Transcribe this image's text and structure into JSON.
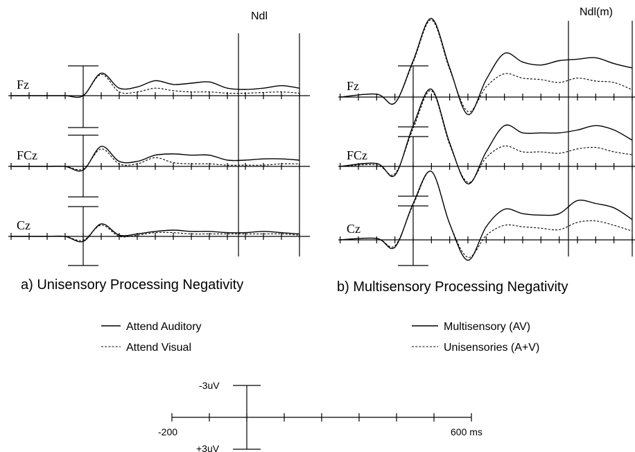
{
  "panels": [
    {
      "id": "a",
      "caption": "a) Unisensory Processing Negativity",
      "marker_label": "Ndl",
      "legend": [
        {
          "style": "solid",
          "label": "Attend Auditory"
        },
        {
          "style": "dashed",
          "label": "Attend Visual"
        }
      ]
    },
    {
      "id": "b",
      "caption": "b) Multisensory Processing Negativity",
      "marker_label": "Ndl(m)",
      "legend": [
        {
          "style": "solid",
          "label": "Multisensory (AV)"
        },
        {
          "style": "dashed",
          "label": "Unisensories (A+V)"
        }
      ]
    }
  ],
  "scale_bar": {
    "neg_label": "-3uV",
    "pos_label": "+3uV",
    "start_label": "-200",
    "end_label": "600 ms"
  },
  "chart_data": [
    {
      "type": "line",
      "panel": "a",
      "x_unit": "ms",
      "y_unit": "uV",
      "xlim": [
        -200,
        600
      ],
      "x": [
        -200,
        -100,
        -50,
        0,
        50,
        100,
        150,
        200,
        250,
        300,
        350,
        400,
        450,
        500,
        550,
        600
      ],
      "electrodes": [
        {
          "label": "Fz",
          "series": [
            {
              "style": "solid",
              "values": [
                0,
                0,
                0,
                0,
                1.8,
                0.6,
                0.7,
                1.2,
                0.9,
                1.0,
                1.1,
                0.6,
                0.5,
                0.6,
                0.8,
                0.6
              ]
            },
            {
              "style": "dashed",
              "values": [
                0,
                0,
                0,
                0,
                1.7,
                0.3,
                0.3,
                0.6,
                0.4,
                0.3,
                0.3,
                0.2,
                0.2,
                0.25,
                0.3,
                0.2
              ]
            }
          ]
        },
        {
          "label": "FCz",
          "series": [
            {
              "style": "solid",
              "values": [
                0,
                0,
                0,
                -0.3,
                1.6,
                0.4,
                0.4,
                0.9,
                1.0,
                0.9,
                0.9,
                0.5,
                0.5,
                0.6,
                0.6,
                0.5
              ]
            },
            {
              "style": "dashed",
              "values": [
                0,
                0,
                0,
                -0.2,
                1.4,
                0.2,
                0.2,
                0.7,
                0.3,
                0.2,
                0.2,
                0.1,
                0.1,
                0.1,
                0.2,
                0.2
              ]
            }
          ]
        },
        {
          "label": "Cz",
          "series": [
            {
              "style": "solid",
              "values": [
                0,
                0,
                0,
                -0.4,
                1.0,
                0.1,
                0.2,
                0.4,
                0.5,
                0.4,
                0.4,
                0.3,
                0.3,
                0.4,
                0.3,
                0.2
              ]
            },
            {
              "style": "dashed",
              "values": [
                0,
                0,
                0,
                -0.3,
                0.9,
                0.0,
                0.1,
                0.3,
                0.3,
                0.2,
                0.2,
                0.2,
                0.2,
                0.2,
                0.2,
                0.1
              ]
            }
          ]
        }
      ]
    },
    {
      "type": "line",
      "panel": "b",
      "x_unit": "ms",
      "y_unit": "uV",
      "xlim": [
        -200,
        600
      ],
      "x": [
        -200,
        -100,
        -50,
        0,
        50,
        100,
        150,
        200,
        250,
        300,
        350,
        400,
        450,
        500,
        550,
        600
      ],
      "electrodes": [
        {
          "label": "Fz",
          "series": [
            {
              "style": "solid",
              "values": [
                0,
                0.2,
                -0.4,
                2.5,
                5.4,
                2.0,
                -1.2,
                1.2,
                3.0,
                2.4,
                2.2,
                2.5,
                2.6,
                2.7,
                2.3,
                2.0
              ]
            },
            {
              "style": "dashed",
              "values": [
                0,
                0.2,
                -0.4,
                2.4,
                5.3,
                1.9,
                -1.0,
                0.7,
                1.6,
                1.3,
                1.2,
                1.0,
                1.3,
                1.1,
                1.0,
                0.5
              ]
            }
          ]
        },
        {
          "label": "FCz",
          "series": [
            {
              "style": "solid",
              "values": [
                0,
                0.2,
                -0.6,
                2.8,
                5.3,
                1.6,
                -1.2,
                1.0,
                2.8,
                2.3,
                2.3,
                2.3,
                2.5,
                2.8,
                2.5,
                1.8
              ]
            },
            {
              "style": "dashed",
              "values": [
                0,
                0.1,
                -0.5,
                2.6,
                5.2,
                1.5,
                -1.1,
                0.6,
                1.4,
                1.0,
                1.0,
                0.9,
                1.2,
                1.3,
                1.0,
                0.8
              ]
            }
          ]
        },
        {
          "label": "Cz",
          "series": [
            {
              "style": "solid",
              "values": [
                0,
                0.1,
                -0.5,
                2.5,
                4.7,
                1.1,
                -1.4,
                0.9,
                2.1,
                1.8,
                1.7,
                1.8,
                2.7,
                2.5,
                2.2,
                1.4
              ]
            },
            {
              "style": "dashed",
              "values": [
                0,
                0.1,
                -0.4,
                2.4,
                4.7,
                1.1,
                -1.2,
                0.3,
                1.0,
                0.9,
                0.8,
                0.7,
                1.2,
                1.3,
                1.0,
                0.6
              ]
            }
          ]
        }
      ]
    }
  ]
}
